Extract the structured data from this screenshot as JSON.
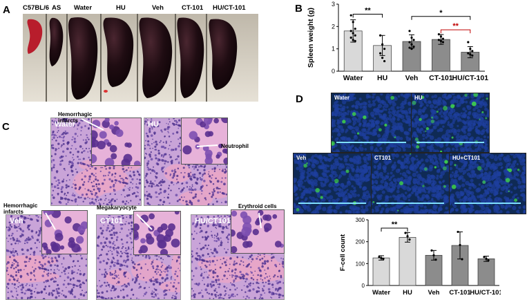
{
  "panels": {
    "a": "A",
    "b": "B",
    "c": "C",
    "d": "D"
  },
  "spleen_photo": {
    "headers": [
      "C57BL/6",
      "AS",
      "Water",
      "HU",
      "Veh",
      "CT-101",
      "HU/CT-101"
    ]
  },
  "histology": {
    "labels": [
      "Water",
      "HU",
      "Veh",
      "CT101",
      "HU/CT101"
    ],
    "annotations": {
      "hemorrhagic_top": "Hemorrhagic\ninfarcts",
      "neutrophil": "Neutrophil",
      "hemorrhagic_bottom": "Hemorrhagic\ninfarcts",
      "megakaryocyte": "Megakaryocyte",
      "erythroid": "Erythroid cells"
    }
  },
  "fluorescence": {
    "labels": [
      "Water",
      "HU",
      "Veh",
      "CT101",
      "HU+CT101"
    ]
  },
  "colors": {
    "bar_light": "#d9d9d9",
    "bar_dark": "#8c8c8c",
    "sig_red": "#c00000",
    "spleen": "#1a0b10",
    "he_pink": "#e8a6c8",
    "nucleus_blue": "#1e3f9e",
    "fitc_green": "#3fd24a"
  },
  "chart_data": [
    {
      "id": "spleen-weight",
      "type": "bar",
      "categories": [
        "Water",
        "HU",
        "Veh",
        "CT-101",
        "HU/CT-101"
      ],
      "values": [
        1.8,
        1.15,
        1.33,
        1.42,
        0.85
      ],
      "errors": [
        0.5,
        0.45,
        0.3,
        0.22,
        0.25
      ],
      "points": [
        [
          2.5,
          2.2,
          1.9,
          1.8,
          1.7,
          1.6,
          1.5,
          1.4,
          1.35
        ],
        [
          1.6,
          1.2,
          1.0,
          0.8,
          0.6,
          0.45
        ],
        [
          1.8,
          1.5,
          1.4,
          1.3,
          1.2,
          1.1,
          1.05,
          1.0
        ],
        [
          1.65,
          1.55,
          1.45,
          1.4,
          1.35,
          1.3
        ],
        [
          1.3,
          1.0,
          0.9,
          0.8,
          0.75,
          0.7
        ]
      ],
      "xlabel": "",
      "ylabel": "Spleen weight (g)",
      "ylim": [
        0,
        3
      ],
      "yticks": [
        "0",
        "1",
        "2",
        "3"
      ],
      "significance": [
        {
          "from": 0,
          "to": 1,
          "label": "**",
          "level": 2.55,
          "color": "#000000"
        },
        {
          "from": 2,
          "to": 4,
          "label": "*",
          "level": 2.45,
          "color": "#000000"
        },
        {
          "from": 3,
          "to": 4,
          "label": "**",
          "level": 1.85,
          "color": "#c00000"
        }
      ],
      "bar_colors": [
        "#d9d9d9",
        "#d9d9d9",
        "#8c8c8c",
        "#8c8c8c",
        "#8c8c8c"
      ]
    },
    {
      "id": "f-cell-count",
      "type": "bar",
      "categories": [
        "Water",
        "HU",
        "Veh",
        "CT-101",
        "HU/CT-101"
      ],
      "values": [
        126,
        220,
        138,
        183,
        122
      ],
      "errors": [
        10,
        22,
        22,
        62,
        12
      ],
      "points": [
        [
          130,
          125,
          122
        ],
        [
          240,
          225,
          210
        ],
        [
          160,
          138,
          118
        ],
        [
          245,
          185,
          120
        ],
        [
          130,
          122,
          115
        ]
      ],
      "xlabel": "",
      "ylabel": "F-cell count",
      "ylim": [
        0,
        300
      ],
      "yticks": [
        "0",
        "100",
        "200",
        "300"
      ],
      "significance": [
        {
          "from": 0,
          "to": 1,
          "label": "**",
          "level": 262,
          "color": "#000000"
        }
      ],
      "bar_colors": [
        "#d9d9d9",
        "#d9d9d9",
        "#8c8c8c",
        "#8c8c8c",
        "#8c8c8c"
      ]
    }
  ]
}
